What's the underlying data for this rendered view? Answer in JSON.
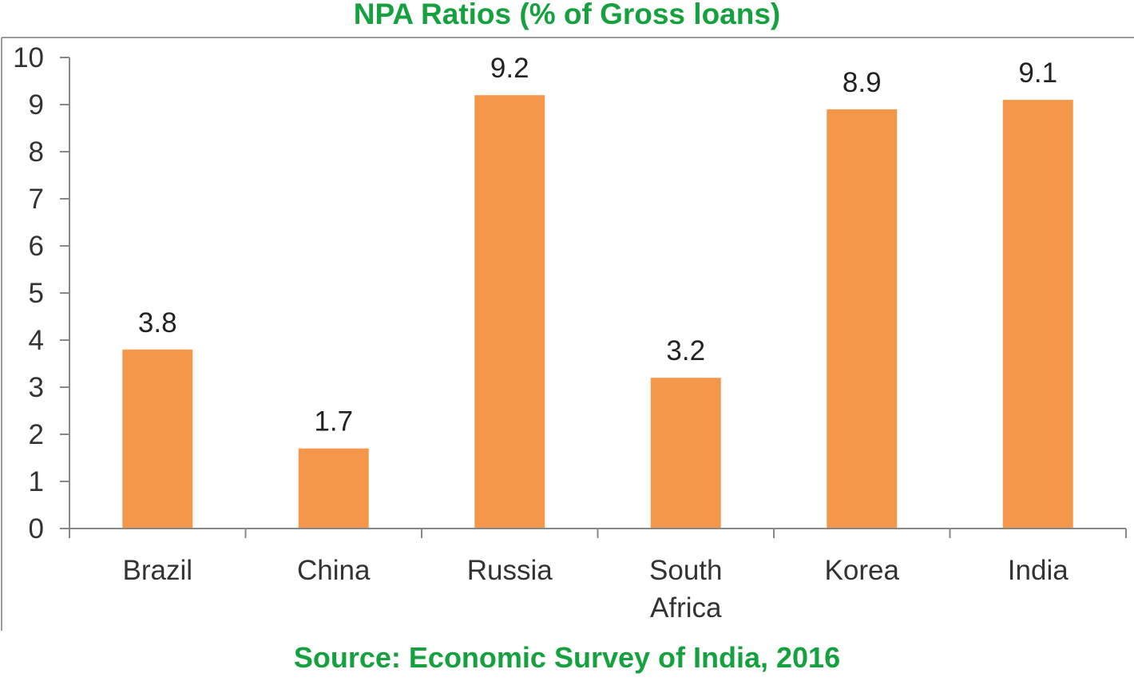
{
  "chart_data": {
    "type": "bar",
    "title": "NPA Ratios (% of Gross loans)",
    "source": "Source: Economic Survey of India, 2016",
    "categories": [
      "Brazil",
      "China",
      "Russia",
      "South Africa",
      "Korea",
      "India"
    ],
    "category_lines": [
      [
        "Brazil"
      ],
      [
        "China"
      ],
      [
        "Russia"
      ],
      [
        "South",
        "Africa"
      ],
      [
        "Korea"
      ],
      [
        "India"
      ]
    ],
    "values": [
      3.8,
      1.7,
      9.2,
      3.2,
      8.9,
      9.1
    ],
    "data_labels": [
      "3.8",
      "1.7",
      "9.2",
      "3.2",
      "8.9",
      "9.1"
    ],
    "xlabel": "",
    "ylabel": "",
    "ylim": [
      0,
      10
    ],
    "yticks": [
      0,
      1,
      2,
      3,
      4,
      5,
      6,
      7,
      8,
      9,
      10
    ],
    "grid": false,
    "legend": "none",
    "colors": {
      "bar": "#F5974A",
      "title": "#14A13E",
      "axis": "#888888",
      "text": "#333333"
    }
  }
}
